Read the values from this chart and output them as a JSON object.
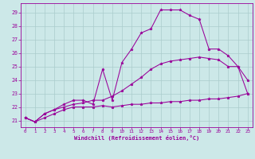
{
  "xlabel": "Windchill (Refroidissement éolien,°C)",
  "background_color": "#cce8e8",
  "grid_color": "#aacccc",
  "line_color": "#990099",
  "xlim": [
    -0.5,
    23.5
  ],
  "ylim": [
    20.5,
    29.7
  ],
  "xticks": [
    0,
    1,
    2,
    3,
    4,
    5,
    6,
    7,
    8,
    9,
    10,
    11,
    12,
    13,
    14,
    15,
    16,
    17,
    18,
    19,
    20,
    21,
    22,
    23
  ],
  "yticks": [
    21,
    22,
    23,
    24,
    25,
    26,
    27,
    28,
    29
  ],
  "series": [
    [
      21.2,
      20.9,
      21.2,
      21.5,
      21.8,
      22.0,
      22.0,
      22.0,
      22.1,
      22.0,
      22.1,
      22.2,
      22.2,
      22.3,
      22.3,
      22.4,
      22.4,
      22.5,
      22.5,
      22.6,
      22.6,
      22.7,
      22.8,
      23.0
    ],
    [
      21.2,
      20.9,
      21.5,
      21.8,
      22.0,
      22.2,
      22.3,
      22.5,
      22.5,
      22.8,
      23.2,
      23.7,
      24.2,
      24.8,
      25.2,
      25.4,
      25.5,
      25.6,
      25.7,
      25.6,
      25.5,
      25.0,
      25.0,
      24.0
    ],
    [
      21.2,
      20.9,
      21.5,
      21.8,
      22.2,
      22.5,
      22.5,
      22.2,
      24.8,
      22.5,
      25.3,
      26.3,
      27.5,
      27.8,
      29.2,
      29.2,
      29.2,
      28.8,
      28.5,
      26.3,
      26.3,
      25.8,
      25.0,
      23.0
    ]
  ]
}
